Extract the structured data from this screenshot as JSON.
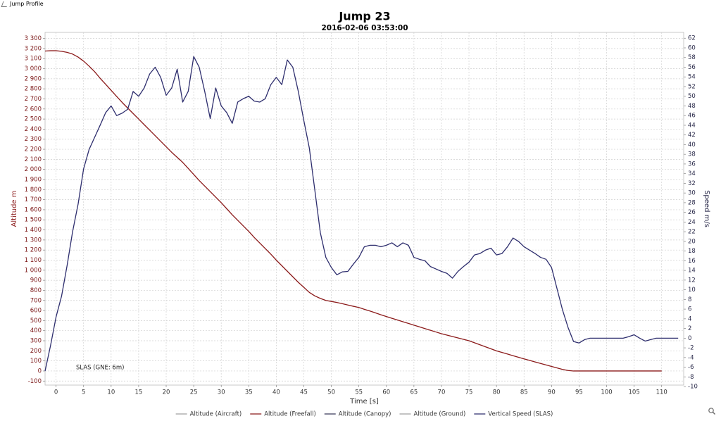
{
  "window_title": "Jump Profile",
  "chart_data": {
    "type": "line",
    "title": "Jump 23",
    "subtitle": "2016-02-06 03:53:00",
    "x_label": "Time [s]",
    "y_label": "Altitude m",
    "y2_label": "Speed m/s",
    "annotation": "SLAS (GNE: 6m)",
    "grid": true,
    "legend_position": "bottom",
    "xlim": [
      -2,
      114
    ],
    "xticks": [
      0,
      5,
      10,
      15,
      20,
      25,
      30,
      35,
      40,
      45,
      50,
      55,
      60,
      65,
      70,
      75,
      80,
      85,
      90,
      95,
      100,
      105,
      110
    ],
    "ylim": [
      -140,
      3360
    ],
    "yticks": [
      -100,
      0,
      100,
      200,
      300,
      400,
      500,
      600,
      700,
      800,
      900,
      {
        "value": 1000,
        "label": "1 000"
      },
      {
        "value": 1100,
        "label": "1 100"
      },
      {
        "value": 1200,
        "label": "1 200"
      },
      {
        "value": 1300,
        "label": "1 300"
      },
      {
        "value": 1400,
        "label": "1 400"
      },
      {
        "value": 1500,
        "label": "1 500"
      },
      {
        "value": 1600,
        "label": "1 600"
      },
      {
        "value": 1700,
        "label": "1 700"
      },
      {
        "value": 1800,
        "label": "1 800"
      },
      {
        "value": 1900,
        "label": "1 900"
      },
      {
        "value": 2000,
        "label": "2 000"
      },
      {
        "value": 2100,
        "label": "2 100"
      },
      {
        "value": 2200,
        "label": "2 200"
      },
      {
        "value": 2300,
        "label": "2 300"
      },
      {
        "value": 2400,
        "label": "2 400"
      },
      {
        "value": 2500,
        "label": "2 500"
      },
      {
        "value": 2600,
        "label": "2 600"
      },
      {
        "value": 2700,
        "label": "2 700"
      },
      {
        "value": 2800,
        "label": "2 800"
      },
      {
        "value": 2900,
        "label": "2 900"
      },
      {
        "value": 3000,
        "label": "3 000"
      },
      {
        "value": 3100,
        "label": "3 100"
      },
      {
        "value": 3200,
        "label": "3 200"
      },
      {
        "value": 3300,
        "label": "3 300"
      }
    ],
    "y2lim": [
      -9.7,
      63.2
    ],
    "y2ticks": [
      -10,
      -8,
      -6,
      -4,
      -2,
      0,
      2,
      4,
      6,
      8,
      10,
      12,
      14,
      16,
      18,
      20,
      22,
      24,
      26,
      28,
      30,
      32,
      34,
      36,
      38,
      40,
      42,
      44,
      46,
      48,
      50,
      52,
      54,
      56,
      58,
      60,
      62
    ],
    "x": [
      -2,
      -1,
      0,
      1,
      2,
      3,
      4,
      5,
      6,
      7,
      8,
      9,
      10,
      11,
      12,
      13,
      14,
      15,
      16,
      17,
      18,
      19,
      20,
      21,
      22,
      23,
      24,
      25,
      26,
      27,
      28,
      29,
      30,
      31,
      32,
      33,
      34,
      35,
      36,
      37,
      38,
      39,
      40,
      41,
      42,
      43,
      44,
      45,
      46,
      47,
      48,
      49,
      50,
      51,
      52,
      53,
      54,
      55,
      56,
      57,
      58,
      59,
      60,
      61,
      62,
      63,
      64,
      65,
      66,
      67,
      68,
      69,
      70,
      71,
      72,
      73,
      74,
      75,
      76,
      77,
      78,
      79,
      80,
      81,
      82,
      83,
      84,
      85,
      86,
      87,
      88,
      89,
      90,
      91,
      92,
      93,
      94,
      95,
      96,
      97,
      98,
      99,
      100,
      101,
      102,
      103,
      104,
      105,
      106,
      107,
      108,
      109,
      110,
      111,
      112,
      113
    ],
    "series": [
      {
        "name": "Altitude (Aircraft)",
        "color": "#a0a0a0"
      },
      {
        "name": "Altitude (Freefall)",
        "color": "#8b1a1a",
        "axis": "y",
        "values": [
          3175,
          3178,
          3178,
          3172,
          3162,
          3145,
          3115,
          3075,
          3025,
          2970,
          2905,
          2845,
          2785,
          2725,
          2665,
          2610,
          2555,
          2500,
          2445,
          2390,
          2335,
          2280,
          2225,
          2170,
          2120,
          2070,
          2010,
          1950,
          1890,
          1835,
          1780,
          1725,
          1670,
          1610,
          1550,
          1495,
          1440,
          1385,
          1325,
          1270,
          1215,
          1160,
          1100,
          1045,
          990,
          935,
          880,
          830,
          780,
          745,
          720,
          700,
          690,
          680,
          668,
          655,
          642,
          630,
          612,
          595,
          577,
          558,
          540,
          523,
          506,
          489,
          472,
          455,
          438,
          421,
          404,
          387,
          370,
          356,
          342,
          328,
          314,
          300,
          280,
          260,
          240,
          220,
          200,
          184,
          168,
          152,
          136,
          120,
          105,
          90,
          75,
          60,
          45,
          30,
          15,
          5,
          0,
          0,
          0,
          0,
          0,
          0,
          0,
          0,
          0,
          0,
          0,
          0,
          0,
          0,
          0,
          0,
          0,
          null,
          null,
          null
        ]
      },
      {
        "name": "Altitude (Canopy)",
        "color": "#3a3a5a"
      },
      {
        "name": "Altitude (Ground)",
        "color": "#a0a0a0"
      },
      {
        "name": "Vertical Speed (SLAS)",
        "color": "#2e2e6e",
        "axis": "y2",
        "values": [
          -6.8,
          -1.5,
          4.4,
          8.7,
          15,
          22,
          27.7,
          35,
          39,
          41.5,
          44,
          46.6,
          48,
          46,
          46.5,
          47.3,
          51,
          50,
          51.7,
          54.6,
          56,
          53.9,
          50.2,
          51.7,
          55.6,
          48.8,
          51,
          58.2,
          56,
          51,
          45.4,
          51.7,
          48,
          46.6,
          44.4,
          48.8,
          49.5,
          50,
          49,
          48.8,
          49.5,
          52.4,
          53.9,
          52.4,
          57.5,
          56,
          51,
          45,
          39.3,
          30.6,
          21.8,
          16.7,
          14.6,
          13.1,
          13.7,
          13.8,
          15.3,
          16.7,
          18.9,
          19.2,
          19.2,
          18.9,
          19.2,
          19.7,
          18.9,
          19.7,
          19.2,
          16.7,
          16.3,
          16,
          14.8,
          14.3,
          13.8,
          13.4,
          12.4,
          13.8,
          14.8,
          15.7,
          17.2,
          17.5,
          18.2,
          18.6,
          17.2,
          17.5,
          18.9,
          20.7,
          20,
          18.9,
          18.2,
          17.5,
          16.7,
          16.3,
          14.6,
          10.2,
          5.8,
          2.2,
          -0.7,
          -1,
          -0.3,
          0,
          0,
          0,
          0,
          0,
          0,
          0,
          0.3,
          0.7,
          0,
          -0.6,
          -0.3,
          0,
          0,
          0,
          0,
          0
        ]
      }
    ]
  }
}
